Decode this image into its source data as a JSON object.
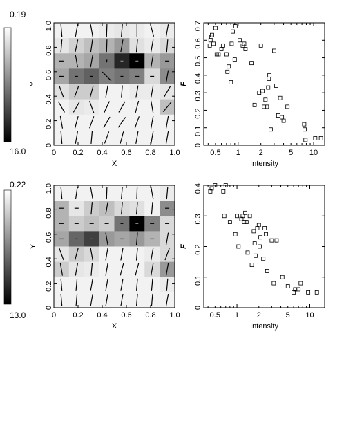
{
  "chart_data": [
    {
      "type": "heatmap",
      "panel": "top-left",
      "xlabel": "X",
      "ylabel": "Y",
      "xlim": [
        0,
        1
      ],
      "ylim": [
        0,
        1
      ],
      "xticks": [
        "0",
        "0.2",
        "0.4",
        "0.6",
        "0.8",
        "1.0"
      ],
      "yticks": [
        "0",
        "0.2",
        "0.4",
        "0.6",
        "0.8",
        "1.0"
      ],
      "colorbar": {
        "top_label": "0.19",
        "bottom_label": "16.0",
        "top_color": "#ffffff",
        "bottom_color": "#000000"
      },
      "grid_rows_top_to_bottom": [
        [
          0.05,
          0.05,
          0.05,
          0.08,
          0.1,
          0.08,
          0.05,
          0.08
        ],
        [
          0.1,
          0.18,
          0.25,
          0.3,
          0.4,
          0.12,
          0.08,
          0.15
        ],
        [
          0.3,
          0.3,
          0.35,
          0.55,
          0.85,
          1.0,
          0.3,
          0.4
        ],
        [
          0.35,
          0.55,
          0.62,
          0.5,
          0.55,
          0.5,
          0.15,
          0.45
        ],
        [
          0.12,
          0.2,
          0.2,
          0.05,
          0.05,
          0.08,
          0.08,
          0.1
        ],
        [
          0.05,
          0.1,
          0.08,
          0.05,
          0.05,
          0.05,
          0.05,
          0.25
        ],
        [
          0.05,
          0.05,
          0.05,
          0.05,
          0.05,
          0.05,
          0.05,
          0.05
        ],
        [
          0.05,
          0.05,
          0.05,
          0.05,
          0.05,
          0.05,
          0.05,
          0.05
        ]
      ],
      "vector_angles_deg_top_to_bottom": [
        [
          -85,
          80,
          -80,
          88,
          85,
          90,
          -75,
          80
        ],
        [
          85,
          78,
          82,
          88,
          80,
          85,
          80,
          85
        ],
        [
          0,
          -80,
          80,
          80,
          0,
          0,
          80,
          0
        ],
        [
          0,
          0,
          0,
          -45,
          0,
          0,
          0,
          80
        ],
        [
          -70,
          70,
          75,
          80,
          85,
          80,
          80,
          60
        ],
        [
          -60,
          60,
          -70,
          65,
          60,
          75,
          -80,
          50
        ],
        [
          -80,
          75,
          70,
          60,
          55,
          70,
          80,
          80
        ],
        [
          -85,
          80,
          85,
          70,
          75,
          80,
          80,
          80
        ]
      ]
    },
    {
      "type": "scatter",
      "panel": "top-right",
      "xlabel": "Intensity",
      "ylabel": "F",
      "xscale": "log",
      "xlim": [
        0.35,
        14
      ],
      "ylim": [
        0,
        0.7
      ],
      "xticks": [
        "0.5",
        "1",
        "2",
        "5",
        "10"
      ],
      "yticks": [
        "0",
        "0.1",
        "0.2",
        "0.3",
        "0.4",
        "0.5",
        "0.6",
        "0.7"
      ],
      "x": [
        0.42,
        0.43,
        0.44,
        0.45,
        0.47,
        0.5,
        0.52,
        0.55,
        0.6,
        0.63,
        0.7,
        0.72,
        0.75,
        0.8,
        0.82,
        0.85,
        0.9,
        0.92,
        1.05,
        1.15,
        1.2,
        1.25,
        1.5,
        1.65,
        1.9,
        2.0,
        2.1,
        2.2,
        2.3,
        2.4,
        2.5,
        2.55,
        2.6,
        2.7,
        3.0,
        3.2,
        3.4,
        3.6,
        3.8,
        4.0,
        4.5,
        7.5,
        7.6,
        7.8,
        10.5,
        12.5
      ],
      "y": [
        0.57,
        0.6,
        0.62,
        0.63,
        0.58,
        0.67,
        0.52,
        0.52,
        0.55,
        0.57,
        0.52,
        0.42,
        0.45,
        0.36,
        0.58,
        0.65,
        0.49,
        0.68,
        0.6,
        0.57,
        0.58,
        0.55,
        0.47,
        0.23,
        0.3,
        0.57,
        0.31,
        0.22,
        0.26,
        0.22,
        0.33,
        0.38,
        0.4,
        0.09,
        0.54,
        0.34,
        0.17,
        0.27,
        0.16,
        0.14,
        0.22,
        0.12,
        0.09,
        0.03,
        0.04,
        0.04
      ]
    },
    {
      "type": "heatmap",
      "panel": "bottom-left",
      "xlabel": "X",
      "ylabel": "Y",
      "xlim": [
        0,
        1
      ],
      "ylim": [
        0,
        1
      ],
      "xticks": [
        "0",
        "0.2",
        "0.4",
        "0.6",
        "0.8",
        "1.0"
      ],
      "yticks": [
        "0",
        "0.2",
        "0.4",
        "0.6",
        "0.8",
        "1.0"
      ],
      "colorbar": {
        "top_label": "0.22",
        "bottom_label": "13.0",
        "top_color": "#ffffff",
        "bottom_color": "#000000"
      },
      "grid_rows_top_to_bottom": [
        [
          0.05,
          0.05,
          0.05,
          0.05,
          0.05,
          0.05,
          0.05,
          0.08
        ],
        [
          0.3,
          0.1,
          0.2,
          0.25,
          0.15,
          0.12,
          0.05,
          0.45
        ],
        [
          0.3,
          0.2,
          0.25,
          0.2,
          0.55,
          1.0,
          0.5,
          0.15
        ],
        [
          0.35,
          0.6,
          0.75,
          0.4,
          0.35,
          0.4,
          0.3,
          0.15
        ],
        [
          0.1,
          0.2,
          0.15,
          0.05,
          0.05,
          0.05,
          0.08,
          0.15
        ],
        [
          0.2,
          0.1,
          0.08,
          0.05,
          0.05,
          0.05,
          0.15,
          0.4
        ],
        [
          0.05,
          0.05,
          0.05,
          0.05,
          0.05,
          0.05,
          0.05,
          0.08
        ],
        [
          0.05,
          0.05,
          0.05,
          0.05,
          0.05,
          0.05,
          0.05,
          0.05
        ]
      ],
      "vector_angles_deg_top_to_bottom": [
        [
          -85,
          82,
          -80,
          88,
          85,
          88,
          -80,
          85
        ],
        [
          0,
          0,
          85,
          80,
          85,
          85,
          85,
          0
        ],
        [
          0,
          0,
          0,
          0,
          0,
          0,
          0,
          0
        ],
        [
          0,
          0,
          0,
          -80,
          0,
          85,
          0,
          80
        ],
        [
          -70,
          75,
          -80,
          80,
          80,
          85,
          80,
          70
        ],
        [
          -80,
          80,
          85,
          80,
          75,
          75,
          80,
          80
        ],
        [
          -85,
          85,
          80,
          80,
          80,
          85,
          85,
          85
        ],
        [
          -85,
          85,
          80,
          80,
          80,
          85,
          85,
          80
        ]
      ]
    },
    {
      "type": "scatter",
      "panel": "bottom-right",
      "xlabel": "Intensity",
      "ylabel": "F",
      "xscale": "log",
      "xlim": [
        0.35,
        16
      ],
      "ylim": [
        0,
        0.4
      ],
      "xticks": [
        "0.5",
        "1",
        "2",
        "5",
        "10"
      ],
      "yticks": [
        "0",
        "0.1",
        "0.2",
        "0.3",
        "0.4"
      ],
      "x": [
        0.43,
        0.45,
        0.5,
        0.65,
        0.67,
        0.7,
        0.8,
        0.95,
        1.0,
        1.05,
        1.15,
        1.2,
        1.25,
        1.3,
        1.35,
        1.4,
        1.5,
        1.6,
        1.7,
        1.75,
        1.8,
        1.9,
        2.0,
        2.05,
        2.1,
        2.3,
        2.4,
        2.5,
        2.6,
        3.0,
        3.2,
        3.5,
        4.2,
        5.0,
        6.0,
        6.3,
        7.0,
        7.5,
        9.5,
        12.5
      ],
      "y": [
        0.38,
        0.39,
        0.4,
        0.38,
        0.3,
        0.4,
        0.28,
        0.24,
        0.3,
        0.2,
        0.29,
        0.3,
        0.28,
        0.31,
        0.28,
        0.18,
        0.3,
        0.14,
        0.25,
        0.21,
        0.17,
        0.26,
        0.27,
        0.2,
        0.23,
        0.16,
        0.26,
        0.24,
        0.12,
        0.22,
        0.08,
        0.22,
        0.1,
        0.07,
        0.05,
        0.06,
        0.06,
        0.08,
        0.05,
        0.05
      ]
    }
  ]
}
